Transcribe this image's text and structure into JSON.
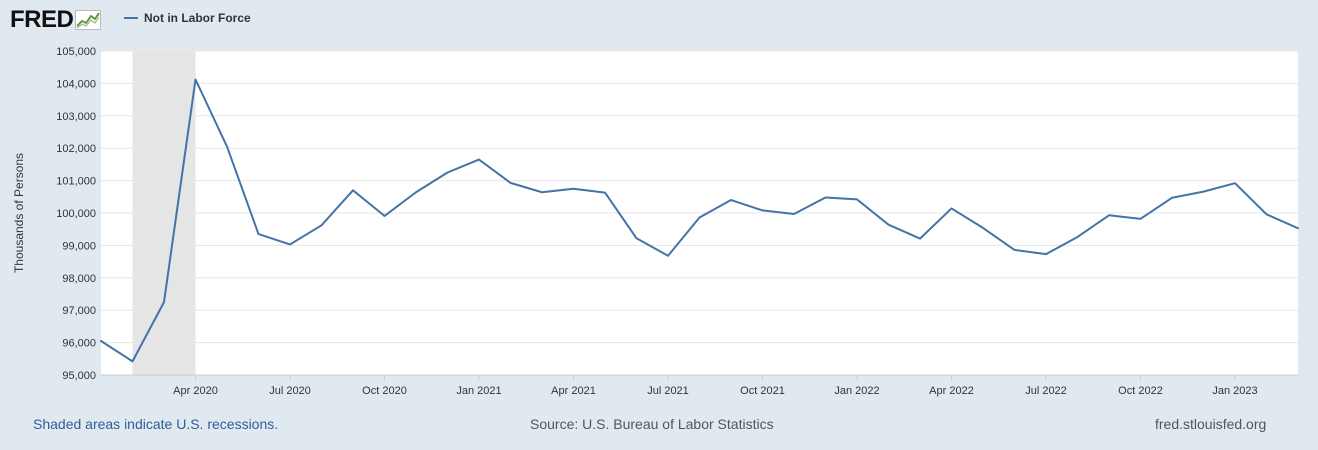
{
  "header": {
    "logo_text": "FRED",
    "logo_mark": "fred-chart-logo-icon"
  },
  "colors": {
    "background": "#e1e9f0",
    "plot_background": "#ffffff",
    "series_line": "#4572a7",
    "recession_shade": "#e5e5e5",
    "gridline": "#e6e6e6"
  },
  "chart_data": {
    "type": "line",
    "title": "",
    "xlabel": "",
    "ylabel": "Thousands of Persons",
    "ylim": [
      95000,
      105000
    ],
    "y_ticks": [
      95000,
      96000,
      97000,
      98000,
      99000,
      100000,
      101000,
      102000,
      103000,
      104000,
      105000
    ],
    "y_tick_labels": [
      "95,000",
      "96,000",
      "97,000",
      "98,000",
      "99,000",
      "100,000",
      "101,000",
      "102,000",
      "103,000",
      "104,000",
      "105,000"
    ],
    "xlim": [
      "2020-01",
      "2023-03"
    ],
    "x_ticks": [
      "2020-04",
      "2020-07",
      "2020-10",
      "2021-01",
      "2021-04",
      "2021-07",
      "2021-10",
      "2022-01",
      "2022-04",
      "2022-07",
      "2022-10",
      "2023-01"
    ],
    "x_tick_labels": [
      "Apr 2020",
      "Jul 2020",
      "Oct 2020",
      "Jan 2021",
      "Apr 2021",
      "Jul 2021",
      "Oct 2021",
      "Jan 2022",
      "Apr 2022",
      "Jul 2022",
      "Oct 2022",
      "Jan 2023"
    ],
    "grid": true,
    "legend": "top-left",
    "recessions": [
      {
        "start": "2020-02",
        "end": "2020-04"
      }
    ],
    "series": [
      {
        "name": "Not in Labor Force",
        "x": [
          "2020-01",
          "2020-02",
          "2020-03",
          "2020-04",
          "2020-05",
          "2020-06",
          "2020-07",
          "2020-08",
          "2020-09",
          "2020-10",
          "2020-11",
          "2020-12",
          "2021-01",
          "2021-02",
          "2021-03",
          "2021-04",
          "2021-05",
          "2021-06",
          "2021-07",
          "2021-08",
          "2021-09",
          "2021-10",
          "2021-11",
          "2021-12",
          "2022-01",
          "2022-02",
          "2022-03",
          "2022-04",
          "2022-05",
          "2022-06",
          "2022-07",
          "2022-08",
          "2022-09",
          "2022-10",
          "2022-11",
          "2022-12",
          "2023-01",
          "2023-02",
          "2023-03"
        ],
        "values": [
          96050,
          95420,
          97250,
          104120,
          102050,
          99350,
          99030,
          99620,
          100700,
          99910,
          100640,
          101250,
          101650,
          100930,
          100640,
          100750,
          100630,
          99220,
          98680,
          99860,
          100400,
          100080,
          99970,
          100480,
          100420,
          99640,
          99210,
          100140,
          99540,
          98860,
          98730,
          99260,
          99930,
          99820,
          100470,
          100660,
          100920,
          99960,
          99530
        ]
      }
    ]
  },
  "footer": {
    "recession_note": "Shaded areas indicate U.S. recessions.",
    "source": "Source: U.S. Bureau of Labor Statistics",
    "site": "fred.stlouisfed.org"
  }
}
